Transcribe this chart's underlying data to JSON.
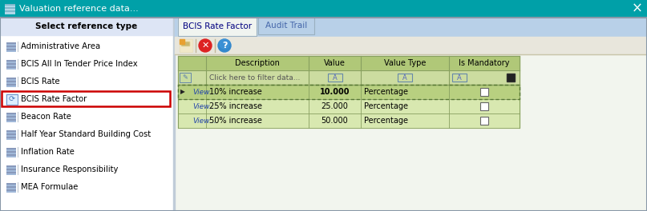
{
  "title": "Valuation reference data...",
  "title_bar_color": "#00a0a8",
  "title_text_color": "#ffffff",
  "window_bg": "#eef2f8",
  "left_panel_bg": "#ffffff",
  "left_panel_header": "Select reference type",
  "left_panel_header_bg": "#dde5f5",
  "left_items": [
    "Administrative Area",
    "BCIS All In Tender Price Index",
    "BCIS Rate",
    "BCIS Rate Factor",
    "Beacon Rate",
    "Half Year Standard Building Cost",
    "Inflation Rate",
    "Insurance Responsibility",
    "MEA Formulae"
  ],
  "selected_item": "BCIS Rate Factor",
  "selected_item_border": "#cc0000",
  "tab_active": "BCIS Rate Factor",
  "tab_inactive": "Audit Trail",
  "tab_bar_bg": "#b8d0e8",
  "tab_active_bg": "#f0f4f0",
  "tab_inactive_bg": "#b8d0e8",
  "toolbar_bg": "#e8e6dc",
  "toolbar_border": "#c8c4a8",
  "table_header_bg": "#b0c878",
  "table_header_text": "#000000",
  "filter_row_bg": "#ccdca0",
  "data_row1_bg": "#b8d080",
  "data_row2_bg": "#d8e8b0",
  "data_row3_bg": "#d8e8b0",
  "table_border_color": "#88a060",
  "col_headers": [
    "",
    "Description",
    "Value",
    "Value Type",
    "Is Mandatory"
  ],
  "data_rows": [
    [
      "10% increase",
      "10.000",
      "Percentage"
    ],
    [
      "25% increase",
      "25.000",
      "Percentage"
    ],
    [
      "50% increase",
      "50.000",
      "Percentage"
    ]
  ],
  "right_panel_bg": "#f2f5ee",
  "right_panel_lower_bg": "#f8f8f4"
}
